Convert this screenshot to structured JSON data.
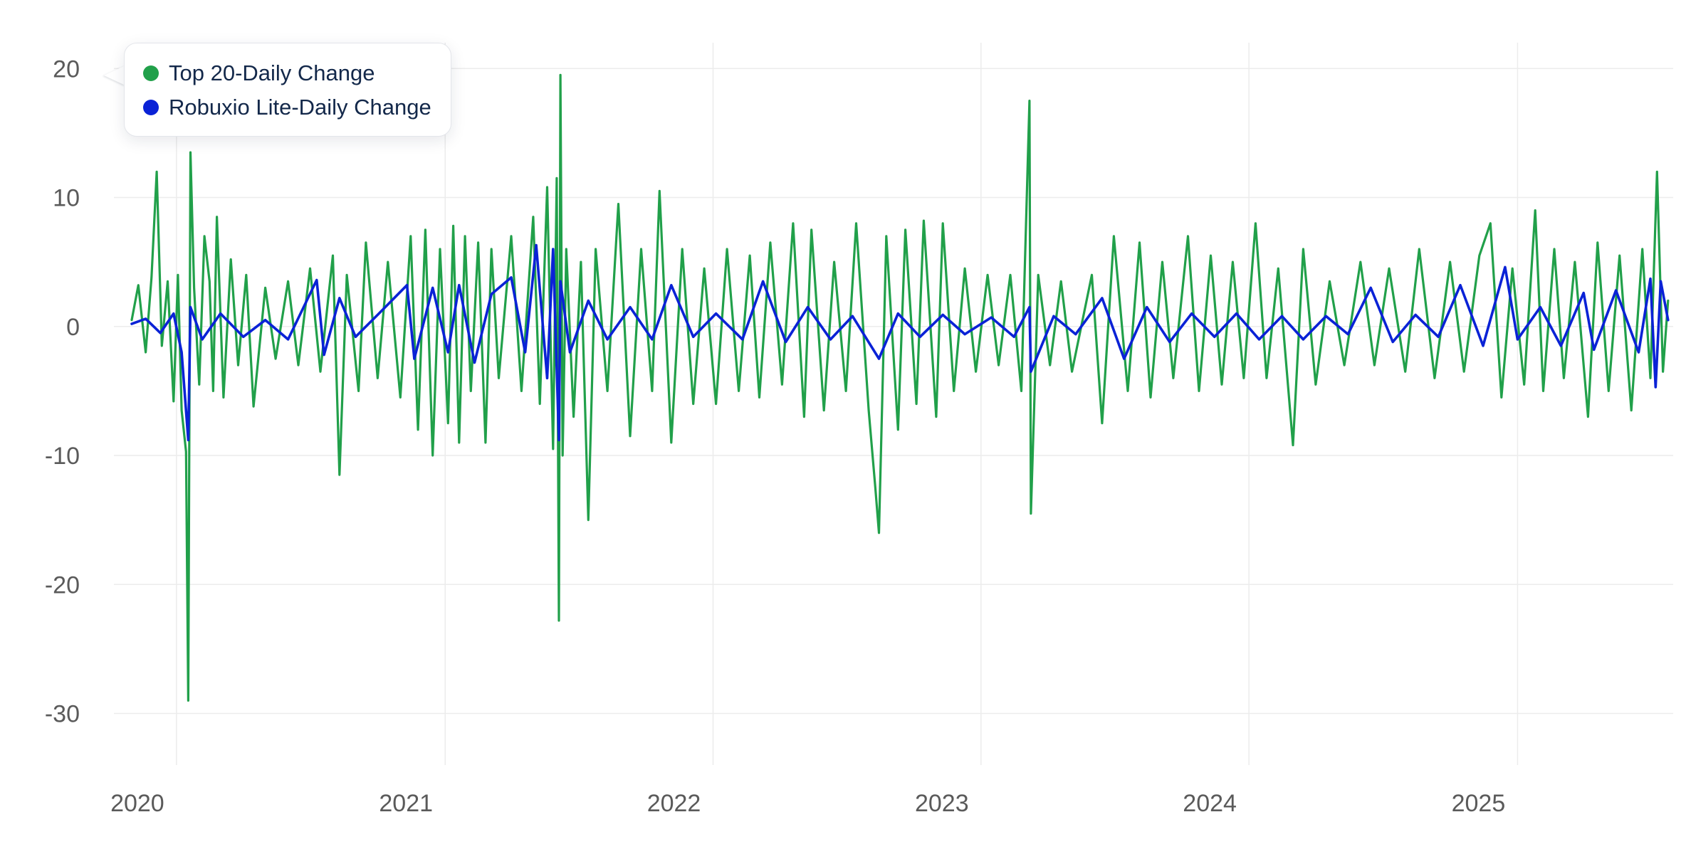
{
  "legend": {
    "items": [
      {
        "label": "Top 20-Daily Change",
        "color": "#21a04a"
      },
      {
        "label": "Robuxio Lite-Daily Change",
        "color": "#0a22d6"
      }
    ]
  },
  "chart_data": {
    "type": "line",
    "title": "",
    "xlabel": "",
    "ylabel": "",
    "ylim": [
      -34,
      22
    ],
    "y_ticks": [
      20,
      10,
      0,
      -10,
      -20,
      -30
    ],
    "x_ticks": [
      "2020",
      "2021",
      "2022",
      "2023",
      "2024",
      "2025"
    ],
    "x_range": [
      "2019-11-01",
      "2025-08-01"
    ],
    "grid": true,
    "legend_position": "top-left",
    "series": [
      {
        "name": "Top 20-Daily Change",
        "color": "#21a04a",
        "points": [
          [
            "2019-11-01",
            0.5
          ],
          [
            "2019-11-10",
            3.2
          ],
          [
            "2019-11-20",
            -2.0
          ],
          [
            "2019-11-28",
            3.8
          ],
          [
            "2019-12-05",
            12.0
          ],
          [
            "2019-12-12",
            -1.5
          ],
          [
            "2019-12-20",
            3.5
          ],
          [
            "2019-12-28",
            -5.8
          ],
          [
            "2020-01-03",
            4.0
          ],
          [
            "2020-01-08",
            -6.5
          ],
          [
            "2020-01-14",
            -9.7
          ],
          [
            "2020-01-17",
            -29.0
          ],
          [
            "2020-01-20",
            13.5
          ],
          [
            "2020-01-25",
            3.0
          ],
          [
            "2020-02-01",
            -4.5
          ],
          [
            "2020-02-08",
            7.0
          ],
          [
            "2020-02-15",
            3.5
          ],
          [
            "2020-02-20",
            -5.0
          ],
          [
            "2020-02-25",
            8.5
          ],
          [
            "2020-03-05",
            -5.5
          ],
          [
            "2020-03-15",
            5.2
          ],
          [
            "2020-03-25",
            -3.0
          ],
          [
            "2020-04-05",
            4.0
          ],
          [
            "2020-04-15",
            -6.2
          ],
          [
            "2020-05-01",
            3.0
          ],
          [
            "2020-05-15",
            -2.5
          ],
          [
            "2020-06-01",
            3.5
          ],
          [
            "2020-06-15",
            -3.0
          ],
          [
            "2020-07-01",
            4.5
          ],
          [
            "2020-07-15",
            -3.5
          ],
          [
            "2020-08-01",
            5.5
          ],
          [
            "2020-08-10",
            -11.5
          ],
          [
            "2020-08-20",
            4.0
          ],
          [
            "2020-09-05",
            -5.0
          ],
          [
            "2020-09-15",
            6.5
          ],
          [
            "2020-10-01",
            -4.0
          ],
          [
            "2020-10-15",
            5.0
          ],
          [
            "2020-11-01",
            -5.5
          ],
          [
            "2020-11-15",
            7.0
          ],
          [
            "2020-11-25",
            -8.0
          ],
          [
            "2020-12-05",
            7.5
          ],
          [
            "2020-12-15",
            -10.0
          ],
          [
            "2020-12-25",
            6.0
          ],
          [
            "2021-01-05",
            -7.5
          ],
          [
            "2021-01-12",
            7.8
          ],
          [
            "2021-01-20",
            -9.0
          ],
          [
            "2021-01-28",
            7.0
          ],
          [
            "2021-02-05",
            -5.0
          ],
          [
            "2021-02-15",
            6.5
          ],
          [
            "2021-02-25",
            -9.0
          ],
          [
            "2021-03-05",
            6.0
          ],
          [
            "2021-03-15",
            -4.0
          ],
          [
            "2021-04-01",
            7.0
          ],
          [
            "2021-04-15",
            -5.0
          ],
          [
            "2021-05-01",
            8.5
          ],
          [
            "2021-05-10",
            -6.0
          ],
          [
            "2021-05-20",
            10.8
          ],
          [
            "2021-05-28",
            -9.5
          ],
          [
            "2021-06-02",
            11.5
          ],
          [
            "2021-06-05",
            -22.8
          ],
          [
            "2021-06-07",
            19.5
          ],
          [
            "2021-06-10",
            -10.0
          ],
          [
            "2021-06-15",
            6.0
          ],
          [
            "2021-06-25",
            -7.0
          ],
          [
            "2021-07-05",
            5.0
          ],
          [
            "2021-07-15",
            -15.0
          ],
          [
            "2021-07-25",
            6.0
          ],
          [
            "2021-08-10",
            -5.0
          ],
          [
            "2021-08-25",
            9.5
          ],
          [
            "2021-09-10",
            -8.5
          ],
          [
            "2021-09-25",
            6.0
          ],
          [
            "2021-10-10",
            -5.0
          ],
          [
            "2021-10-20",
            10.5
          ],
          [
            "2021-11-05",
            -9.0
          ],
          [
            "2021-11-20",
            6.0
          ],
          [
            "2021-12-05",
            -6.0
          ],
          [
            "2021-12-20",
            4.5
          ],
          [
            "2022-01-05",
            -6.0
          ],
          [
            "2022-01-20",
            6.0
          ],
          [
            "2022-02-05",
            -5.0
          ],
          [
            "2022-02-20",
            5.5
          ],
          [
            "2022-03-05",
            -5.5
          ],
          [
            "2022-03-20",
            6.5
          ],
          [
            "2022-04-05",
            -4.5
          ],
          [
            "2022-04-20",
            8.0
          ],
          [
            "2022-05-05",
            -7.0
          ],
          [
            "2022-05-15",
            7.5
          ],
          [
            "2022-06-01",
            -6.5
          ],
          [
            "2022-06-15",
            5.0
          ],
          [
            "2022-07-01",
            -5.0
          ],
          [
            "2022-07-15",
            8.0
          ],
          [
            "2022-08-01",
            -6.5
          ],
          [
            "2022-08-10",
            -12.5
          ],
          [
            "2022-08-15",
            -16.0
          ],
          [
            "2022-08-25",
            7.0
          ],
          [
            "2022-09-10",
            -8.0
          ],
          [
            "2022-09-20",
            7.5
          ],
          [
            "2022-10-05",
            -6.0
          ],
          [
            "2022-10-15",
            8.2
          ],
          [
            "2022-11-01",
            -7.0
          ],
          [
            "2022-11-10",
            8.0
          ],
          [
            "2022-11-25",
            -5.0
          ],
          [
            "2022-12-10",
            4.5
          ],
          [
            "2022-12-25",
            -3.5
          ],
          [
            "2023-01-10",
            4.0
          ],
          [
            "2023-01-25",
            -3.0
          ],
          [
            "2023-02-10",
            4.0
          ],
          [
            "2023-02-25",
            -5.0
          ],
          [
            "2023-03-08",
            17.5
          ],
          [
            "2023-03-10",
            -14.5
          ],
          [
            "2023-03-20",
            4.0
          ],
          [
            "2023-04-05",
            -3.0
          ],
          [
            "2023-04-20",
            3.5
          ],
          [
            "2023-05-05",
            -3.5
          ],
          [
            "2023-06-01",
            4.0
          ],
          [
            "2023-06-15",
            -7.5
          ],
          [
            "2023-07-01",
            7.0
          ],
          [
            "2023-07-20",
            -5.0
          ],
          [
            "2023-08-05",
            6.5
          ],
          [
            "2023-08-20",
            -5.5
          ],
          [
            "2023-09-05",
            5.0
          ],
          [
            "2023-09-20",
            -4.0
          ],
          [
            "2023-10-10",
            7.0
          ],
          [
            "2023-10-25",
            -5.0
          ],
          [
            "2023-11-10",
            5.5
          ],
          [
            "2023-11-25",
            -4.5
          ],
          [
            "2023-12-10",
            5.0
          ],
          [
            "2023-12-25",
            -4.0
          ],
          [
            "2024-01-10",
            8.0
          ],
          [
            "2024-01-25",
            -4.0
          ],
          [
            "2024-02-10",
            4.5
          ],
          [
            "2024-03-01",
            -9.2
          ],
          [
            "2024-03-15",
            6.0
          ],
          [
            "2024-04-01",
            -4.5
          ],
          [
            "2024-04-20",
            3.5
          ],
          [
            "2024-05-10",
            -3.0
          ],
          [
            "2024-06-01",
            5.0
          ],
          [
            "2024-06-20",
            -3.0
          ],
          [
            "2024-07-10",
            4.5
          ],
          [
            "2024-08-01",
            -3.5
          ],
          [
            "2024-08-20",
            6.0
          ],
          [
            "2024-09-10",
            -4.0
          ],
          [
            "2024-10-01",
            5.0
          ],
          [
            "2024-10-20",
            -3.5
          ],
          [
            "2024-11-10",
            5.5
          ],
          [
            "2024-11-25",
            8.0
          ],
          [
            "2024-12-10",
            -5.5
          ],
          [
            "2024-12-25",
            4.5
          ],
          [
            "2025-01-10",
            -4.5
          ],
          [
            "2025-01-25",
            9.0
          ],
          [
            "2025-02-05",
            -5.0
          ],
          [
            "2025-02-20",
            6.0
          ],
          [
            "2025-03-05",
            -4.0
          ],
          [
            "2025-03-20",
            5.0
          ],
          [
            "2025-04-07",
            -7.0
          ],
          [
            "2025-04-20",
            6.5
          ],
          [
            "2025-05-05",
            -5.0
          ],
          [
            "2025-05-20",
            5.5
          ],
          [
            "2025-06-05",
            -6.5
          ],
          [
            "2025-06-20",
            6.0
          ],
          [
            "2025-07-01",
            -4.0
          ],
          [
            "2025-07-10",
            12.0
          ],
          [
            "2025-07-18",
            -3.5
          ],
          [
            "2025-07-25",
            2.0
          ]
        ]
      },
      {
        "name": "Robuxio Lite-Daily Change",
        "color": "#0a22d6",
        "points": [
          [
            "2019-11-01",
            0.2
          ],
          [
            "2019-11-20",
            0.6
          ],
          [
            "2019-12-10",
            -0.5
          ],
          [
            "2019-12-28",
            1.0
          ],
          [
            "2020-01-08",
            -2.0
          ],
          [
            "2020-01-17",
            -8.8
          ],
          [
            "2020-01-20",
            1.5
          ],
          [
            "2020-02-05",
            -1.0
          ],
          [
            "2020-03-01",
            1.0
          ],
          [
            "2020-04-01",
            -0.8
          ],
          [
            "2020-05-01",
            0.5
          ],
          [
            "2020-06-01",
            -1.0
          ],
          [
            "2020-07-10",
            3.6
          ],
          [
            "2020-07-20",
            -2.2
          ],
          [
            "2020-08-10",
            2.2
          ],
          [
            "2020-09-01",
            -0.8
          ],
          [
            "2020-10-01",
            0.9
          ],
          [
            "2020-11-10",
            3.2
          ],
          [
            "2020-11-20",
            -2.5
          ],
          [
            "2020-12-15",
            3.0
          ],
          [
            "2021-01-05",
            -2.0
          ],
          [
            "2021-01-20",
            3.2
          ],
          [
            "2021-02-10",
            -2.8
          ],
          [
            "2021-03-05",
            2.5
          ],
          [
            "2021-04-01",
            3.8
          ],
          [
            "2021-04-20",
            -2.0
          ],
          [
            "2021-05-05",
            6.3
          ],
          [
            "2021-05-20",
            -4.0
          ],
          [
            "2021-05-28",
            6.0
          ],
          [
            "2021-06-05",
            -8.8
          ],
          [
            "2021-06-07",
            3.5
          ],
          [
            "2021-06-20",
            -2.0
          ],
          [
            "2021-07-15",
            2.0
          ],
          [
            "2021-08-10",
            -1.0
          ],
          [
            "2021-09-10",
            1.5
          ],
          [
            "2021-10-10",
            -1.0
          ],
          [
            "2021-11-05",
            3.2
          ],
          [
            "2021-12-05",
            -0.8
          ],
          [
            "2022-01-05",
            1.0
          ],
          [
            "2022-02-10",
            -1.0
          ],
          [
            "2022-03-10",
            3.5
          ],
          [
            "2022-04-10",
            -1.2
          ],
          [
            "2022-05-10",
            1.5
          ],
          [
            "2022-06-10",
            -1.0
          ],
          [
            "2022-07-10",
            0.8
          ],
          [
            "2022-08-15",
            -2.5
          ],
          [
            "2022-09-10",
            1.0
          ],
          [
            "2022-10-10",
            -0.8
          ],
          [
            "2022-11-10",
            0.9
          ],
          [
            "2022-12-10",
            -0.6
          ],
          [
            "2023-01-15",
            0.7
          ],
          [
            "2023-02-15",
            -0.8
          ],
          [
            "2023-03-08",
            1.5
          ],
          [
            "2023-03-10",
            -3.5
          ],
          [
            "2023-04-10",
            0.8
          ],
          [
            "2023-05-10",
            -0.6
          ],
          [
            "2023-06-15",
            2.2
          ],
          [
            "2023-07-15",
            -2.5
          ],
          [
            "2023-08-15",
            1.5
          ],
          [
            "2023-09-15",
            -1.2
          ],
          [
            "2023-10-15",
            1.0
          ],
          [
            "2023-11-15",
            -0.8
          ],
          [
            "2023-12-15",
            1.0
          ],
          [
            "2024-01-15",
            -1.0
          ],
          [
            "2024-02-15",
            0.8
          ],
          [
            "2024-03-15",
            -1.0
          ],
          [
            "2024-04-15",
            0.8
          ],
          [
            "2024-05-15",
            -0.6
          ],
          [
            "2024-06-15",
            3.0
          ],
          [
            "2024-07-15",
            -1.2
          ],
          [
            "2024-08-15",
            0.9
          ],
          [
            "2024-09-15",
            -0.8
          ],
          [
            "2024-10-15",
            3.2
          ],
          [
            "2024-11-15",
            -1.5
          ],
          [
            "2024-12-15",
            4.6
          ],
          [
            "2025-01-01",
            -1.0
          ],
          [
            "2025-02-01",
            1.5
          ],
          [
            "2025-03-01",
            -1.5
          ],
          [
            "2025-04-01",
            2.6
          ],
          [
            "2025-04-15",
            -1.8
          ],
          [
            "2025-05-15",
            2.8
          ],
          [
            "2025-06-15",
            -2.0
          ],
          [
            "2025-07-01",
            3.7
          ],
          [
            "2025-07-08",
            -4.7
          ],
          [
            "2025-07-15",
            3.5
          ],
          [
            "2025-07-25",
            0.5
          ]
        ]
      }
    ]
  }
}
